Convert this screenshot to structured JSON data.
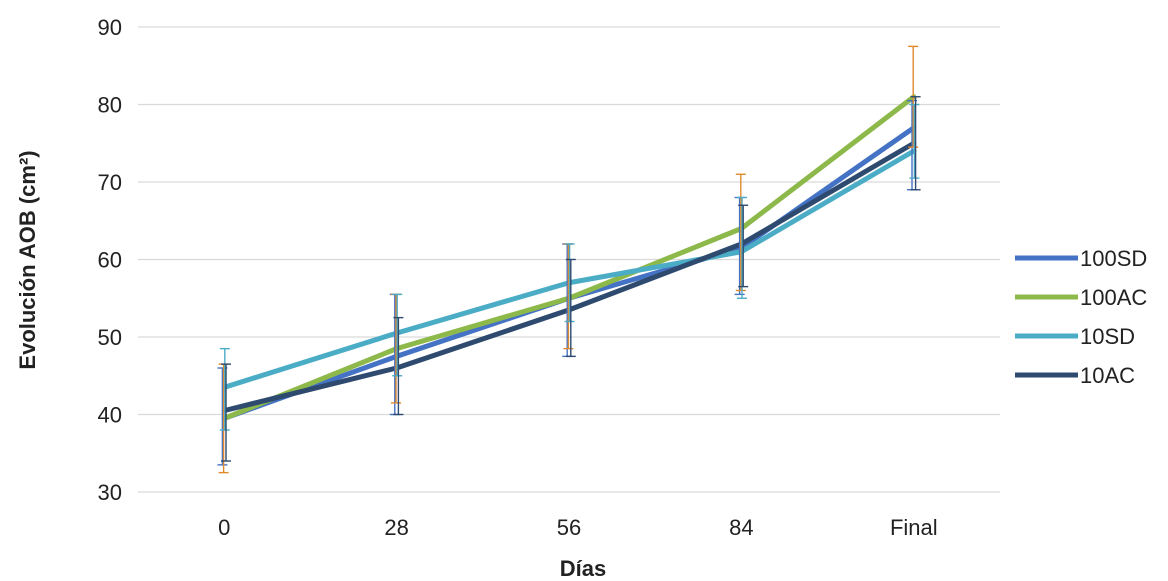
{
  "chart_data": {
    "type": "line",
    "xlabel": "Días",
    "ylabel": "Evolución AOB (cm²)",
    "categories": [
      "0",
      "28",
      "56",
      "84",
      "Final"
    ],
    "ylim": [
      30,
      90
    ],
    "yticks": [
      "30",
      "40",
      "50",
      "60",
      "70",
      "80",
      "90"
    ],
    "grid": true,
    "legend_position": "right",
    "error_bar_color": "#E08A2E",
    "series": [
      {
        "name": "100SD",
        "color": "#4472C4",
        "values": [
          39.5,
          47.5,
          55.0,
          61.5,
          77.0
        ],
        "err_low": [
          33.5,
          40.0,
          47.5,
          55.5,
          69.0
        ],
        "err_high": [
          46.0,
          55.5,
          62.0,
          68.0,
          80.5
        ]
      },
      {
        "name": "100AC",
        "color": "#8DB84A",
        "values": [
          39.5,
          48.5,
          55.0,
          64.0,
          81.0
        ],
        "err_low": [
          32.5,
          41.5,
          48.5,
          56.0,
          74.5
        ],
        "err_high": [
          46.5,
          55.5,
          62.0,
          71.0,
          87.5
        ]
      },
      {
        "name": "10SD",
        "color": "#4BACC6",
        "values": [
          43.5,
          50.5,
          57.0,
          61.0,
          74.0
        ],
        "err_low": [
          38.0,
          45.0,
          52.0,
          55.0,
          70.5
        ],
        "err_high": [
          48.5,
          55.5,
          62.0,
          68.0,
          80.0
        ]
      },
      {
        "name": "10AC",
        "color": "#2E4A6F",
        "values": [
          40.5,
          46.0,
          53.5,
          62.0,
          75.0
        ],
        "err_low": [
          34.0,
          40.0,
          47.5,
          56.5,
          69.0
        ],
        "err_high": [
          46.5,
          52.5,
          60.0,
          67.0,
          81.0
        ]
      }
    ]
  }
}
